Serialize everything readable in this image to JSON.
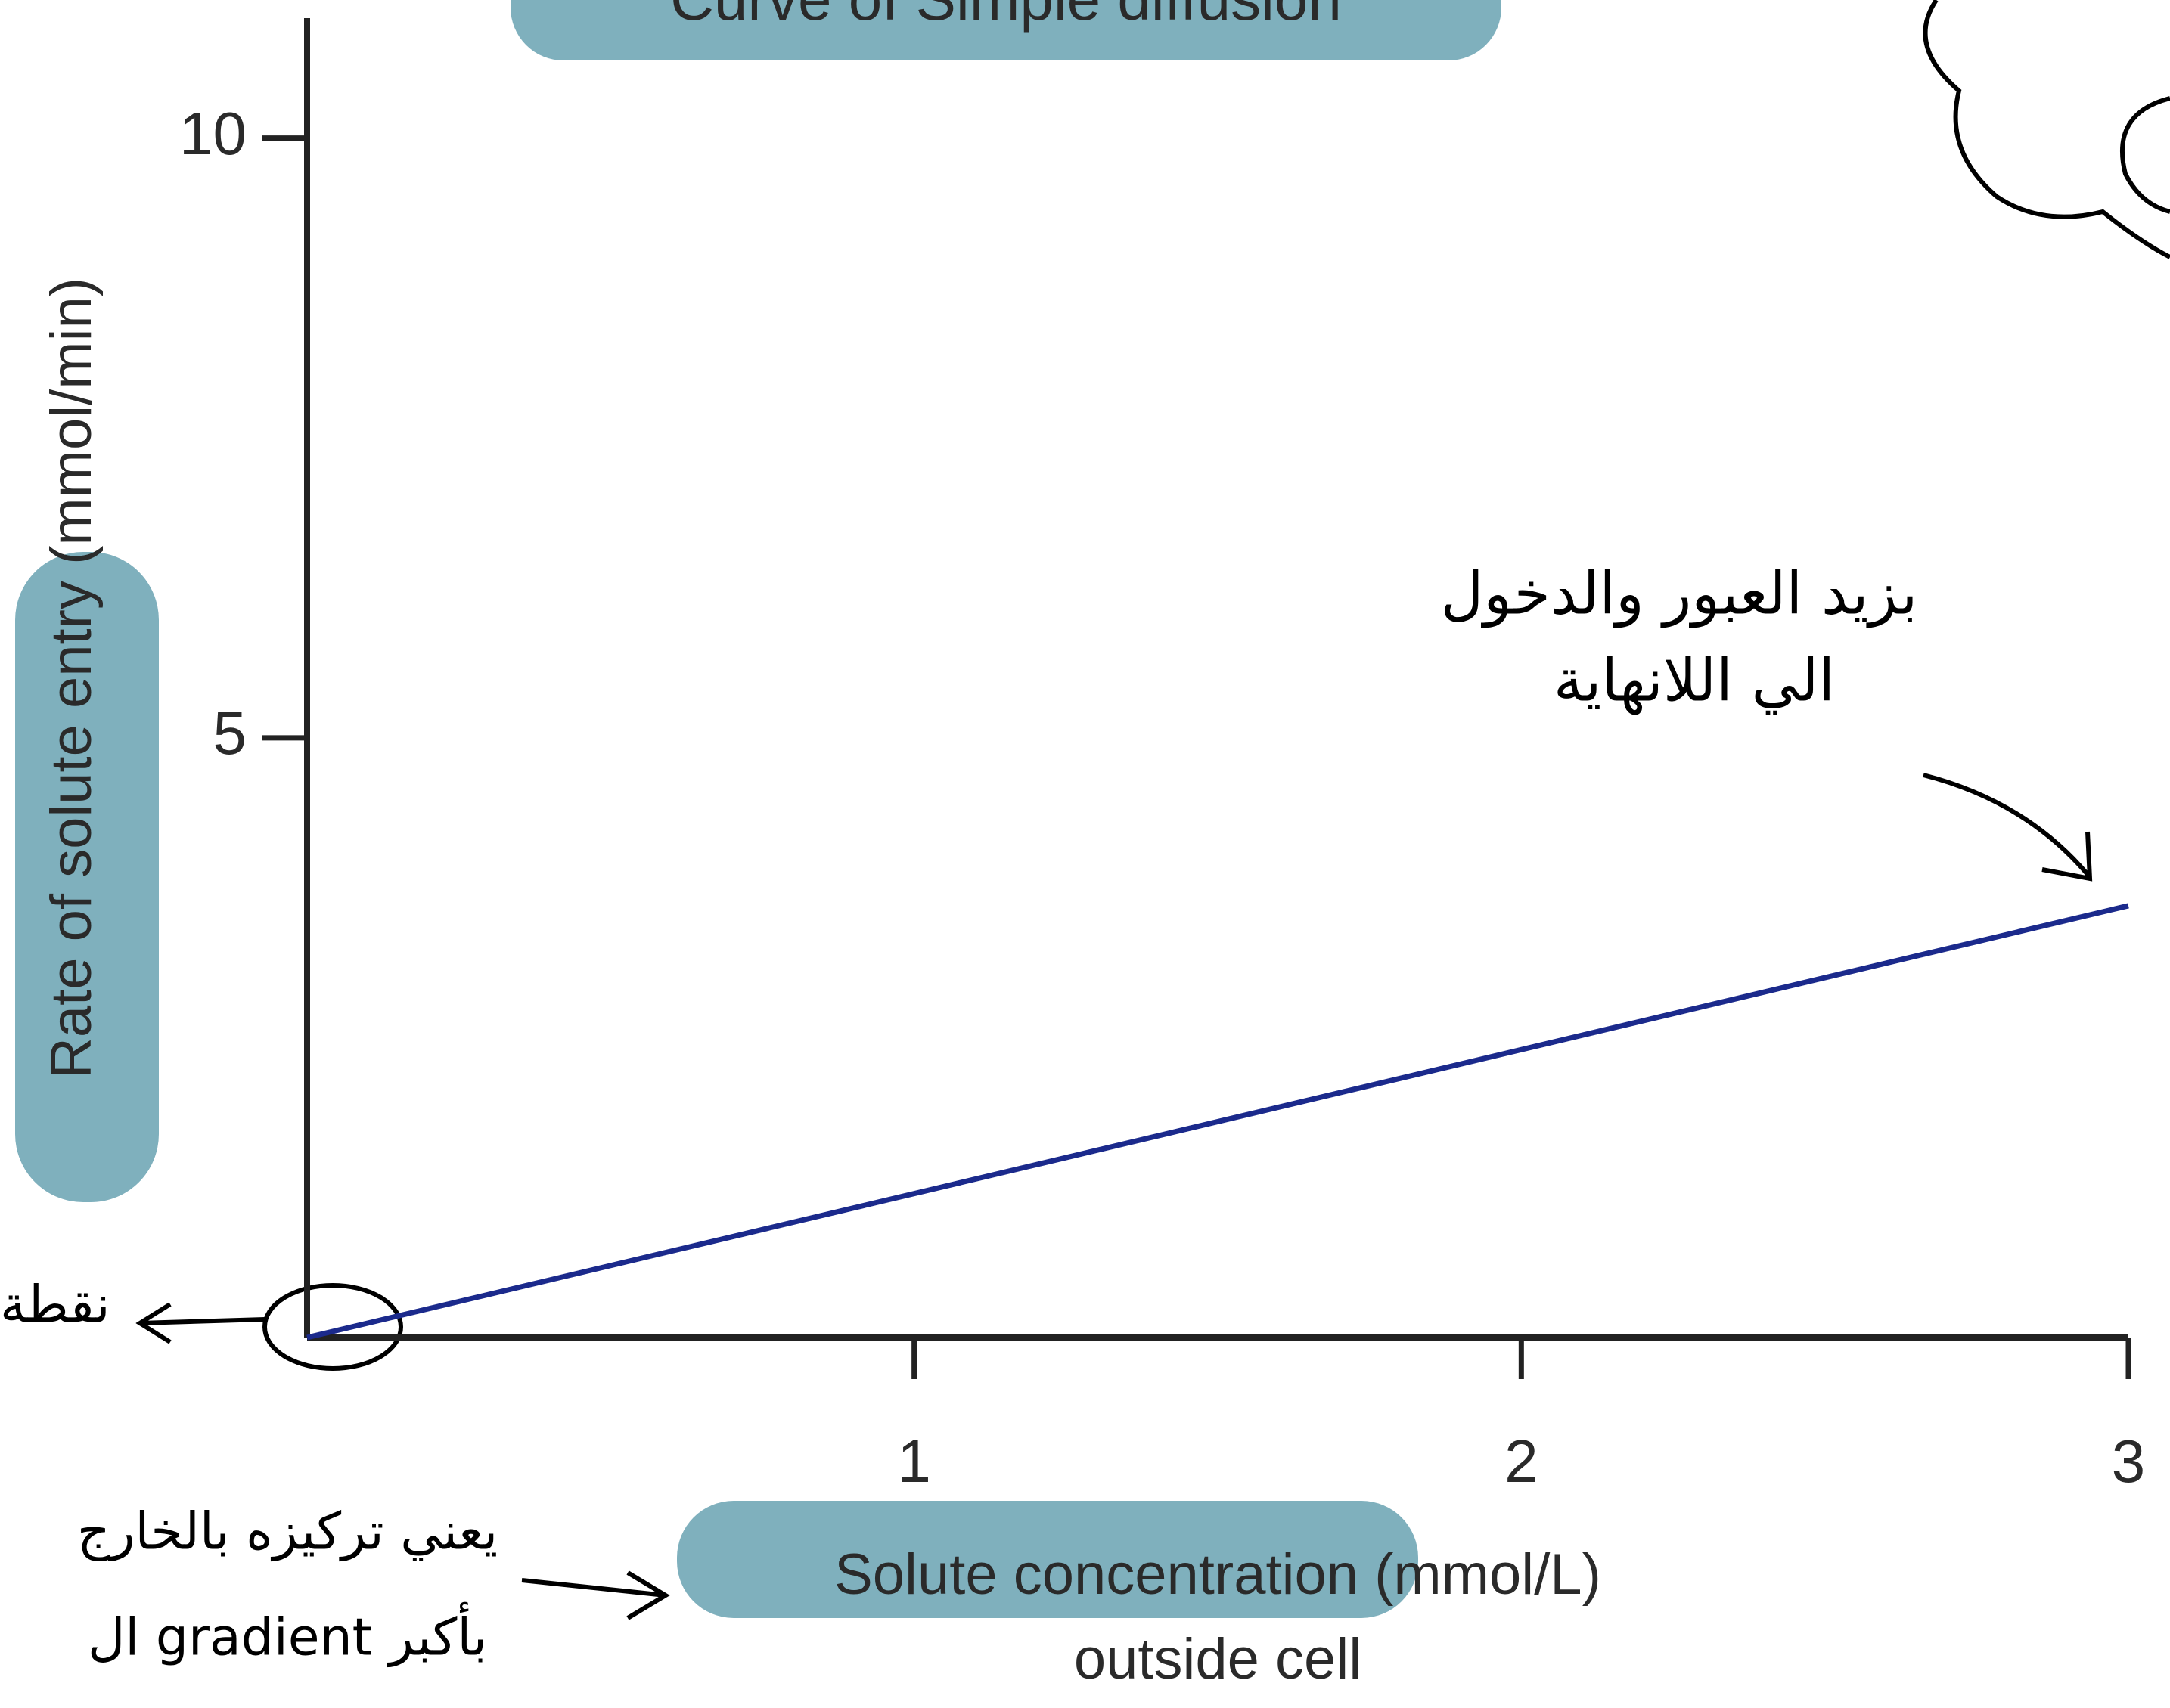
{
  "chart_data": {
    "type": "line",
    "title": "Curve of Simple diffusion",
    "x": [
      0,
      3
    ],
    "values": [
      0,
      3.6
    ],
    "color": "#1b2a8c",
    "xlim": [
      0,
      3
    ],
    "ylim": [
      0,
      11
    ],
    "xticks": [
      1,
      2,
      3
    ],
    "yticks": [
      5,
      10
    ],
    "xlabel": [
      "Solute concentration (mmol/L)",
      "outside cell"
    ],
    "ylabel": "Rate of solute entry (mmol/min)",
    "annotations": [
      "بزيد العبور والدخول",
      "الي اللانهاية",
      "يعني تركيزه بالخارج",
      "بأكبر gradient ال",
      "نقطة"
    ]
  }
}
